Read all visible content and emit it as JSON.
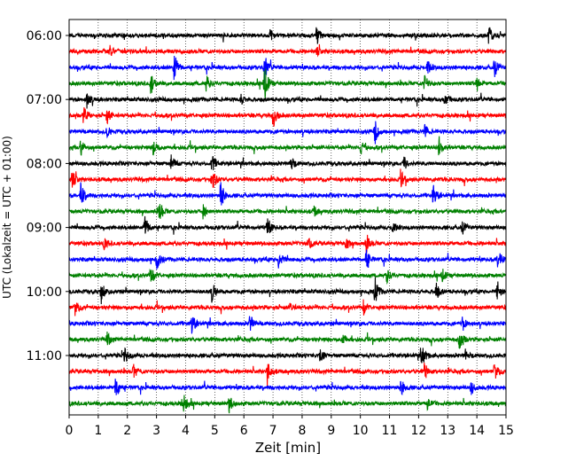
{
  "chart_data": {
    "type": "line",
    "title": "",
    "xlabel": "Zeit  [min]",
    "ylabel": "UTC (Lokalzeit = UTC + 01:00)",
    "xlim": [
      0,
      15
    ],
    "x_ticks": [
      "0",
      "1",
      "2",
      "3",
      "4",
      "5",
      "6",
      "7",
      "8",
      "9",
      "10",
      "11",
      "12",
      "13",
      "14",
      "15"
    ],
    "y_ticks": [
      "06:00",
      "07:00",
      "08:00",
      "09:00",
      "10:00",
      "11:00"
    ],
    "trace_start_times": [
      "06:00",
      "06:15",
      "06:30",
      "06:45",
      "07:00",
      "07:15",
      "07:30",
      "07:45",
      "08:00",
      "08:15",
      "08:30",
      "08:45",
      "09:00",
      "09:15",
      "09:30",
      "09:45",
      "10:00",
      "10:15",
      "10:30",
      "10:45",
      "11:00",
      "11:15",
      "11:30",
      "11:45"
    ],
    "trace_colors": [
      "#000000",
      "#ff0000",
      "#0000ff",
      "#008000"
    ],
    "events": [
      {
        "trace": 0,
        "t": 8.5,
        "a": 1.2
      },
      {
        "trace": 0,
        "t": 14.4,
        "a": 1.0
      },
      {
        "trace": 0,
        "t": 6.9,
        "a": 0.6
      },
      {
        "trace": 1,
        "t": 1.4,
        "a": 0.6
      },
      {
        "trace": 1,
        "t": 8.5,
        "a": 0.5
      },
      {
        "trace": 2,
        "t": 3.6,
        "a": 1.8
      },
      {
        "trace": 2,
        "t": 6.7,
        "a": 1.6
      },
      {
        "trace": 2,
        "t": 12.3,
        "a": 0.8
      },
      {
        "trace": 2,
        "t": 14.6,
        "a": 1.2
      },
      {
        "trace": 3,
        "t": 2.8,
        "a": 1.3
      },
      {
        "trace": 3,
        "t": 4.7,
        "a": 1.0
      },
      {
        "trace": 3,
        "t": 6.7,
        "a": 2.4
      },
      {
        "trace": 3,
        "t": 12.2,
        "a": 1.1
      },
      {
        "trace": 3,
        "t": 14.0,
        "a": 0.8
      },
      {
        "trace": 4,
        "t": 0.6,
        "a": 1.0
      },
      {
        "trace": 4,
        "t": 5.9,
        "a": 0.6
      },
      {
        "trace": 4,
        "t": 12.9,
        "a": 0.9
      },
      {
        "trace": 5,
        "t": 0.5,
        "a": 1.1
      },
      {
        "trace": 5,
        "t": 1.3,
        "a": 0.9
      },
      {
        "trace": 5,
        "t": 7.0,
        "a": 1.4
      },
      {
        "trace": 6,
        "t": 1.3,
        "a": 0.6
      },
      {
        "trace": 6,
        "t": 10.5,
        "a": 1.3
      },
      {
        "trace": 6,
        "t": 12.2,
        "a": 0.7
      },
      {
        "trace": 7,
        "t": 0.4,
        "a": 0.9
      },
      {
        "trace": 7,
        "t": 2.9,
        "a": 1.0
      },
      {
        "trace": 7,
        "t": 10.0,
        "a": 0.9
      },
      {
        "trace": 7,
        "t": 12.7,
        "a": 1.1
      },
      {
        "trace": 8,
        "t": 3.5,
        "a": 0.9
      },
      {
        "trace": 8,
        "t": 4.9,
        "a": 1.0
      },
      {
        "trace": 8,
        "t": 7.6,
        "a": 0.9
      },
      {
        "trace": 8,
        "t": 11.5,
        "a": 0.7
      },
      {
        "trace": 9,
        "t": 0.1,
        "a": 1.2
      },
      {
        "trace": 9,
        "t": 4.9,
        "a": 1.5
      },
      {
        "trace": 9,
        "t": 11.4,
        "a": 0.8
      },
      {
        "trace": 10,
        "t": 0.4,
        "a": 1.4
      },
      {
        "trace": 10,
        "t": 5.2,
        "a": 1.6
      },
      {
        "trace": 10,
        "t": 12.5,
        "a": 1.4
      },
      {
        "trace": 11,
        "t": 3.1,
        "a": 1.2
      },
      {
        "trace": 11,
        "t": 4.6,
        "a": 0.8
      },
      {
        "trace": 11,
        "t": 8.4,
        "a": 0.6
      },
      {
        "trace": 12,
        "t": 2.6,
        "a": 1.3
      },
      {
        "trace": 12,
        "t": 6.8,
        "a": 1.2
      },
      {
        "trace": 12,
        "t": 11.1,
        "a": 0.7
      },
      {
        "trace": 12,
        "t": 13.5,
        "a": 0.8
      },
      {
        "trace": 13,
        "t": 1.2,
        "a": 0.6
      },
      {
        "trace": 13,
        "t": 8.2,
        "a": 0.8
      },
      {
        "trace": 13,
        "t": 9.5,
        "a": 0.7
      },
      {
        "trace": 13,
        "t": 10.2,
        "a": 1.0
      },
      {
        "trace": 14,
        "t": 3.0,
        "a": 1.1
      },
      {
        "trace": 14,
        "t": 7.2,
        "a": 1.2
      },
      {
        "trace": 14,
        "t": 10.2,
        "a": 1.2
      },
      {
        "trace": 14,
        "t": 14.7,
        "a": 1.6
      },
      {
        "trace": 15,
        "t": 2.8,
        "a": 1.1
      },
      {
        "trace": 15,
        "t": 10.9,
        "a": 0.9
      },
      {
        "trace": 15,
        "t": 12.8,
        "a": 0.8
      },
      {
        "trace": 16,
        "t": 1.1,
        "a": 1.2
      },
      {
        "trace": 16,
        "t": 4.9,
        "a": 1.1
      },
      {
        "trace": 16,
        "t": 10.5,
        "a": 1.5
      },
      {
        "trace": 16,
        "t": 12.6,
        "a": 1.0
      },
      {
        "trace": 16,
        "t": 14.7,
        "a": 1.0
      },
      {
        "trace": 17,
        "t": 0.2,
        "a": 0.8
      },
      {
        "trace": 17,
        "t": 7.6,
        "a": 0.6
      },
      {
        "trace": 17,
        "t": 10.1,
        "a": 0.8
      },
      {
        "trace": 18,
        "t": 4.2,
        "a": 1.4
      },
      {
        "trace": 18,
        "t": 6.2,
        "a": 1.1
      },
      {
        "trace": 18,
        "t": 13.5,
        "a": 0.8
      },
      {
        "trace": 19,
        "t": 1.3,
        "a": 0.8
      },
      {
        "trace": 19,
        "t": 9.4,
        "a": 0.7
      },
      {
        "trace": 19,
        "t": 13.4,
        "a": 1.3
      },
      {
        "trace": 20,
        "t": 1.9,
        "a": 1.0
      },
      {
        "trace": 20,
        "t": 8.6,
        "a": 1.0
      },
      {
        "trace": 20,
        "t": 12.1,
        "a": 1.6
      },
      {
        "trace": 20,
        "t": 13.6,
        "a": 0.6
      },
      {
        "trace": 21,
        "t": 2.2,
        "a": 0.9
      },
      {
        "trace": 21,
        "t": 6.8,
        "a": 1.4
      },
      {
        "trace": 21,
        "t": 12.2,
        "a": 1.0
      },
      {
        "trace": 21,
        "t": 14.6,
        "a": 1.0
      },
      {
        "trace": 22,
        "t": 1.6,
        "a": 1.5
      },
      {
        "trace": 22,
        "t": 11.4,
        "a": 1.0
      },
      {
        "trace": 22,
        "t": 13.8,
        "a": 0.7
      },
      {
        "trace": 23,
        "t": 3.9,
        "a": 1.6
      },
      {
        "trace": 23,
        "t": 5.5,
        "a": 0.9
      },
      {
        "trace": 23,
        "t": 12.3,
        "a": 0.7
      }
    ]
  }
}
